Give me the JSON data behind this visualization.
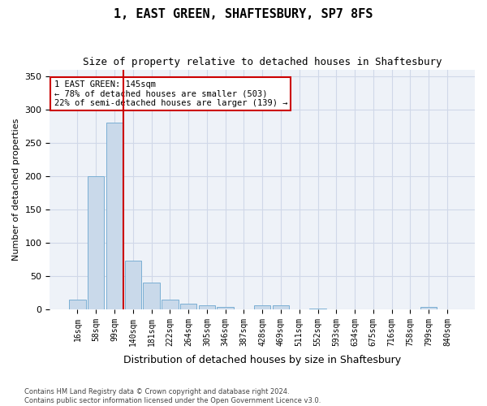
{
  "title": "1, EAST GREEN, SHAFTESBURY, SP7 8FS",
  "subtitle": "Size of property relative to detached houses in Shaftesbury",
  "xlabel": "Distribution of detached houses by size in Shaftesbury",
  "ylabel": "Number of detached properties",
  "bar_color": "#c9d9ea",
  "bar_edge_color": "#7bafd4",
  "grid_color": "#d0d8e8",
  "background_color": "#eef2f8",
  "vline_color": "#cc0000",
  "vline_pos": 2.5,
  "annotation_text": "1 EAST GREEN: 145sqm\n← 78% of detached houses are smaller (503)\n22% of semi-detached houses are larger (139) →",
  "annotation_box_color": "#ffffff",
  "annotation_box_edge": "#cc0000",
  "bins": [
    "16sqm",
    "58sqm",
    "99sqm",
    "140sqm",
    "181sqm",
    "222sqm",
    "264sqm",
    "305sqm",
    "346sqm",
    "387sqm",
    "428sqm",
    "469sqm",
    "511sqm",
    "552sqm",
    "593sqm",
    "634sqm",
    "675sqm",
    "716sqm",
    "758sqm",
    "799sqm",
    "840sqm"
  ],
  "values": [
    14,
    200,
    280,
    73,
    40,
    14,
    8,
    6,
    4,
    0,
    6,
    6,
    0,
    1,
    0,
    0,
    0,
    0,
    0,
    3,
    0
  ],
  "ylim": [
    0,
    360
  ],
  "yticks": [
    0,
    50,
    100,
    150,
    200,
    250,
    300,
    350
  ],
  "footer1": "Contains HM Land Registry data © Crown copyright and database right 2024.",
  "footer2": "Contains public sector information licensed under the Open Government Licence v3.0."
}
